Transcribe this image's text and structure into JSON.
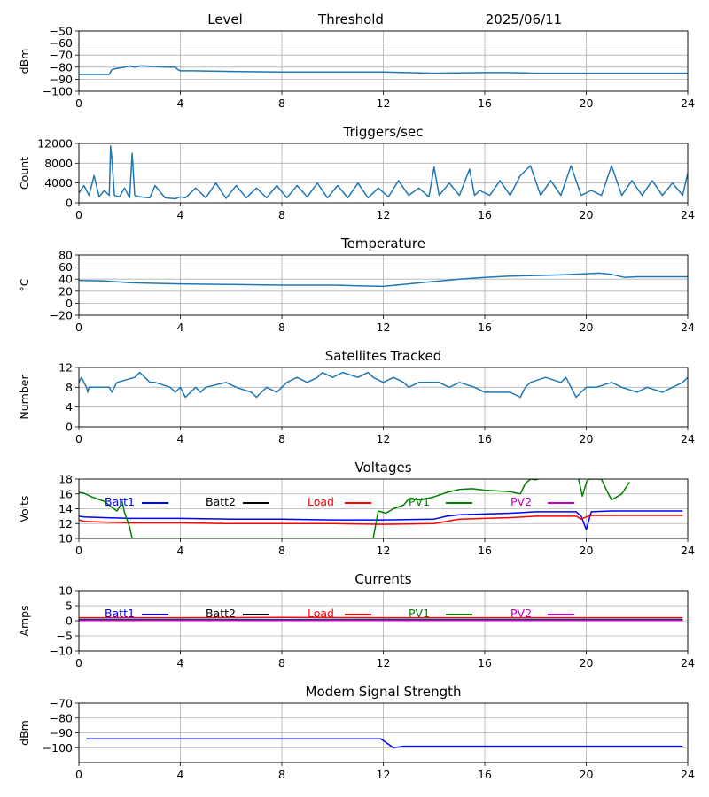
{
  "header": {
    "level_label": "Level",
    "threshold_label": "Threshold",
    "date": "2025/06/11"
  },
  "chart_data": [
    {
      "id": "level",
      "type": "line",
      "title": "",
      "xlabel": "",
      "ylabel": "dBm",
      "xlim": [
        0,
        24
      ],
      "ylim": [
        -100,
        -50
      ],
      "xticks": [
        0,
        4,
        8,
        12,
        16,
        20,
        24
      ],
      "yticks": [
        -100,
        -90,
        -80,
        -70,
        -60,
        -50
      ],
      "ytick_labels": [
        "−100",
        "−90",
        "−80",
        "−70",
        "−60",
        "−50"
      ],
      "grid": true,
      "series": [
        {
          "color": "#1f77b4",
          "x": [
            0,
            1.2,
            1.3,
            1.5,
            1.8,
            2.0,
            2.2,
            2.4,
            2.6,
            3.0,
            3.5,
            3.8,
            3.9,
            4.0,
            4.5,
            6,
            8,
            10,
            12,
            14,
            16,
            17,
            18,
            20,
            22,
            24
          ],
          "y": [
            -86,
            -86,
            -82,
            -81,
            -80,
            -79,
            -80,
            -79,
            -79,
            -79.5,
            -80,
            -80,
            -82,
            -83,
            -83,
            -83.5,
            -84,
            -84,
            -84,
            -85,
            -84.5,
            -84.5,
            -85,
            -85,
            -85,
            -85
          ]
        }
      ]
    },
    {
      "id": "triggers",
      "type": "line",
      "title": "Triggers/sec",
      "xlabel": "",
      "ylabel": "Count",
      "xlim": [
        0,
        24
      ],
      "ylim": [
        0,
        12000
      ],
      "xticks": [
        0,
        4,
        8,
        12,
        16,
        20,
        24
      ],
      "yticks": [
        0,
        4000,
        8000,
        12000
      ],
      "ytick_labels": [
        "0",
        "4000",
        "8000",
        "12000"
      ],
      "grid": true,
      "series": [
        {
          "color": "#1f77b4",
          "x": [
            0,
            0.2,
            0.4,
            0.6,
            0.8,
            1.0,
            1.2,
            1.25,
            1.3,
            1.4,
            1.6,
            1.8,
            2.0,
            2.1,
            2.2,
            2.4,
            2.8,
            3.0,
            3.4,
            3.8,
            4.0,
            4.2,
            4.6,
            5.0,
            5.4,
            5.8,
            6.2,
            6.6,
            7.0,
            7.4,
            7.8,
            8.2,
            8.6,
            9.0,
            9.4,
            9.8,
            10.2,
            10.6,
            11.0,
            11.4,
            11.8,
            12.2,
            12.6,
            13.0,
            13.4,
            13.8,
            14.0,
            14.2,
            14.6,
            15.0,
            15.4,
            15.6,
            15.8,
            16.2,
            16.6,
            17.0,
            17.4,
            17.8,
            18.2,
            18.6,
            19.0,
            19.4,
            19.8,
            20.2,
            20.6,
            21.0,
            21.4,
            21.8,
            22.2,
            22.6,
            23.0,
            23.4,
            23.8,
            24
          ],
          "y": [
            2000,
            3500,
            1500,
            5500,
            1200,
            2500,
            1500,
            11500,
            9000,
            1500,
            1200,
            3000,
            1000,
            10000,
            1500,
            1200,
            1000,
            3500,
            1000,
            800,
            1200,
            1000,
            3000,
            1000,
            4000,
            900,
            3500,
            1000,
            3000,
            1000,
            3500,
            1000,
            3500,
            1200,
            4000,
            1000,
            3500,
            1000,
            4000,
            1000,
            3000,
            1200,
            4500,
            1500,
            3000,
            1200,
            7200,
            1500,
            4000,
            1500,
            6800,
            1500,
            2500,
            1500,
            4500,
            1500,
            5500,
            7500,
            1500,
            4500,
            1500,
            7500,
            1500,
            2500,
            1500,
            7500,
            1500,
            4500,
            1500,
            4500,
            1500,
            4000,
            1500,
            6000
          ]
        }
      ]
    },
    {
      "id": "temperature",
      "type": "line",
      "title": "Temperature",
      "xlabel": "",
      "ylabel": "°C",
      "xlim": [
        0,
        24
      ],
      "ylim": [
        -20,
        80
      ],
      "xticks": [
        0,
        4,
        8,
        12,
        16,
        20,
        24
      ],
      "yticks": [
        -20,
        0,
        20,
        40,
        60,
        80
      ],
      "ytick_labels": [
        "−20",
        "0",
        "20",
        "40",
        "60",
        "80"
      ],
      "grid": true,
      "series": [
        {
          "color": "#1f77b4",
          "x": [
            0,
            1,
            2,
            3,
            4,
            6,
            8,
            10,
            11,
            12,
            12.5,
            13,
            14,
            15,
            16,
            17,
            18,
            19,
            20,
            20.5,
            21,
            21.5,
            22,
            23,
            24
          ],
          "y": [
            38,
            37,
            34,
            33,
            32,
            31,
            30,
            30,
            29,
            28,
            30,
            32,
            36,
            40,
            43,
            45,
            46,
            47,
            49,
            50,
            48,
            43,
            44,
            44,
            44
          ]
        }
      ]
    },
    {
      "id": "satellites",
      "type": "line",
      "title": "Satellites Tracked",
      "xlabel": "",
      "ylabel": "Number",
      "xlim": [
        0,
        24
      ],
      "ylim": [
        0,
        12
      ],
      "xticks": [
        0,
        4,
        8,
        12,
        16,
        20,
        24
      ],
      "yticks": [
        0,
        4,
        8,
        12
      ],
      "ytick_labels": [
        "0",
        "4",
        "8",
        "12"
      ],
      "grid": true,
      "series": [
        {
          "color": "#1f77b4",
          "x": [
            0,
            0.1,
            0.2,
            0.3,
            0.35,
            0.4,
            1.2,
            1.3,
            1.5,
            2.2,
            2.4,
            2.6,
            2.8,
            3.0,
            3.6,
            3.8,
            4.0,
            4.2,
            4.4,
            4.6,
            4.8,
            5.0,
            5.8,
            6.2,
            6.8,
            7.0,
            7.2,
            7.4,
            7.8,
            8.0,
            8.2,
            8.6,
            9.0,
            9.4,
            9.6,
            10.0,
            10.4,
            11.0,
            11.4,
            11.6,
            12.0,
            12.4,
            12.8,
            13.0,
            13.4,
            14.2,
            14.6,
            15.0,
            15.6,
            16.0,
            17.0,
            17.4,
            17.6,
            17.8,
            18.4,
            19.0,
            19.2,
            19.4,
            19.6,
            19.8,
            20.0,
            20.4,
            21.0,
            21.4,
            22.0,
            22.4,
            23.0,
            23.4,
            23.8,
            24
          ],
          "y": [
            9,
            10,
            9,
            8,
            7,
            8,
            8,
            7,
            9,
            10,
            11,
            10,
            9,
            9,
            8,
            7,
            8,
            6,
            7,
            8,
            7,
            8,
            9,
            8,
            7,
            6,
            7,
            8,
            7,
            8,
            9,
            10,
            9,
            10,
            11,
            10,
            11,
            10,
            11,
            10,
            9,
            10,
            9,
            8,
            9,
            9,
            8,
            9,
            8,
            7,
            7,
            6,
            8,
            9,
            10,
            9,
            10,
            8,
            6,
            7,
            8,
            8,
            9,
            8,
            7,
            8,
            7,
            8,
            9,
            10
          ]
        }
      ]
    },
    {
      "id": "voltages",
      "type": "line",
      "title": "Voltages",
      "xlabel": "",
      "ylabel": "Volts",
      "xlim": [
        0,
        24
      ],
      "ylim": [
        10,
        18
      ],
      "xticks": [
        0,
        4,
        8,
        12,
        16,
        20,
        24
      ],
      "yticks": [
        10,
        12,
        14,
        16,
        18
      ],
      "ytick_labels": [
        "10",
        "12",
        "14",
        "16",
        "18"
      ],
      "grid": true,
      "series": [
        {
          "name": "Batt1",
          "color": "#0000ff",
          "x": [
            0,
            0.2,
            1,
            2,
            3,
            4,
            6,
            8,
            10,
            12,
            14,
            14.5,
            15,
            16,
            17,
            17.5,
            18,
            19,
            19.6,
            19.8,
            20.0,
            20.2,
            21,
            22,
            23,
            23.8
          ],
          "y": [
            13.0,
            12.9,
            12.8,
            12.7,
            12.7,
            12.7,
            12.6,
            12.6,
            12.5,
            12.5,
            12.6,
            13.0,
            13.2,
            13.3,
            13.4,
            13.5,
            13.6,
            13.6,
            13.6,
            13.0,
            11.2,
            13.6,
            13.7,
            13.7,
            13.7,
            13.7
          ]
        },
        {
          "name": "Batt2",
          "color": "#000000",
          "x": [],
          "y": []
        },
        {
          "name": "Load",
          "color": "#ff0000",
          "x": [
            0,
            0.2,
            1,
            2,
            3,
            4,
            6,
            8,
            10,
            12,
            14,
            14.5,
            15,
            16,
            17,
            17.5,
            18,
            19,
            19.6,
            19.8,
            20.0,
            20.2,
            21,
            22,
            23,
            23.8
          ],
          "y": [
            12.5,
            12.3,
            12.2,
            12.1,
            12.1,
            12.1,
            12.0,
            12.0,
            12.0,
            11.9,
            12.0,
            12.3,
            12.6,
            12.7,
            12.8,
            12.9,
            13.0,
            13.0,
            13.0,
            12.6,
            12.9,
            13.1,
            13.1,
            13.1,
            13.1,
            13.1
          ]
        },
        {
          "name": "PV1",
          "color": "#008000",
          "x": [
            0,
            0.2,
            0.5,
            1.0,
            1.3,
            1.5,
            1.6,
            1.7,
            1.8,
            2.0,
            2.1,
            11.6,
            11.8,
            12.1,
            12.4,
            12.8,
            13.0,
            13.5,
            14.0,
            14.5,
            15.0,
            15.5,
            16.0,
            17.0,
            17.4,
            17.6,
            17.8,
            18.0,
            18.1
          ],
          "y": [
            16.2,
            16.1,
            15.6,
            15.0,
            14.2,
            13.7,
            14.2,
            15.0,
            13.5,
            11.5,
            10.0,
            10.0,
            13.7,
            13.4,
            14.0,
            14.5,
            15.3,
            15.2,
            15.6,
            16.2,
            16.6,
            16.7,
            16.5,
            16.3,
            16.0,
            17.4,
            18.0,
            17.9,
            18.0
          ]
        }
      ],
      "extra_series": [
        {
          "name": "PV1",
          "color": "#008000",
          "x": [
            19.7,
            19.85,
            20.0,
            20.1,
            20.3,
            20.6,
            20.8,
            21.0,
            21.4,
            21.7
          ],
          "y": [
            18.0,
            15.7,
            17.5,
            18.0,
            18.0,
            18.0,
            16.5,
            15.2,
            16.0,
            17.6
          ]
        }
      ],
      "legend": [
        "Batt1",
        "Batt2",
        "Load",
        "PV1",
        "PV2"
      ],
      "legend_colors": [
        "#0000ff",
        "#000000",
        "#ff0000",
        "#008000",
        "#bf00bf"
      ]
    },
    {
      "id": "currents",
      "type": "line",
      "title": "Currents",
      "xlabel": "",
      "ylabel": "Amps",
      "xlim": [
        0,
        24
      ],
      "ylim": [
        -10,
        10
      ],
      "xticks": [
        0,
        4,
        8,
        12,
        16,
        20,
        24
      ],
      "yticks": [
        -10,
        -5,
        0,
        5,
        10
      ],
      "ytick_labels": [
        "−10",
        "−5",
        "0",
        "5",
        "10"
      ],
      "grid": true,
      "series": [
        {
          "name": "Batt1",
          "color": "#0000ff",
          "x": [
            0,
            4,
            8,
            12,
            16,
            20,
            23.8
          ],
          "y": [
            0.4,
            0.4,
            0.4,
            0.4,
            0.4,
            0.4,
            0.4
          ]
        },
        {
          "name": "Batt2",
          "color": "#000000",
          "x": [],
          "y": []
        },
        {
          "name": "Load",
          "color": "#ff0000",
          "x": [
            0,
            4,
            8,
            12,
            16,
            20,
            23.8
          ],
          "y": [
            1.0,
            1.0,
            1.1,
            1.0,
            1.0,
            1.0,
            1.0
          ]
        },
        {
          "name": "PV1",
          "color": "#008000",
          "x": [
            0,
            4,
            8,
            12,
            16,
            20,
            23.8
          ],
          "y": [
            0.2,
            0.2,
            0.2,
            0.2,
            0.2,
            0.2,
            0.2
          ]
        },
        {
          "name": "PV2",
          "color": "#bf00bf",
          "x": [
            0,
            4,
            8,
            12,
            16,
            20,
            23.8
          ],
          "y": [
            0.1,
            0.1,
            0.1,
            0.1,
            0.1,
            0.1,
            0.1
          ]
        }
      ],
      "legend": [
        "Batt1",
        "Batt2",
        "Load",
        "PV1",
        "PV2"
      ],
      "legend_colors": [
        "#0000ff",
        "#000000",
        "#ff0000",
        "#008000",
        "#bf00bf"
      ]
    },
    {
      "id": "modem",
      "type": "line",
      "title": "Modem Signal Strength",
      "xlabel": "",
      "ylabel": "dBm",
      "xlim": [
        0,
        24
      ],
      "ylim": [
        -110,
        -70
      ],
      "xticks": [
        0,
        4,
        8,
        12,
        16,
        20,
        24
      ],
      "yticks": [
        -100,
        -90,
        -80,
        -70
      ],
      "ytick_labels": [
        "−100",
        "−90",
        "−80",
        "−70"
      ],
      "grid": true,
      "series": [
        {
          "color": "#0000ff",
          "x": [
            0.3,
            11.9,
            12.4,
            12.8,
            13.0,
            23.8
          ],
          "y": [
            -94,
            -94,
            -100,
            -99,
            -99,
            -99
          ]
        }
      ]
    }
  ]
}
